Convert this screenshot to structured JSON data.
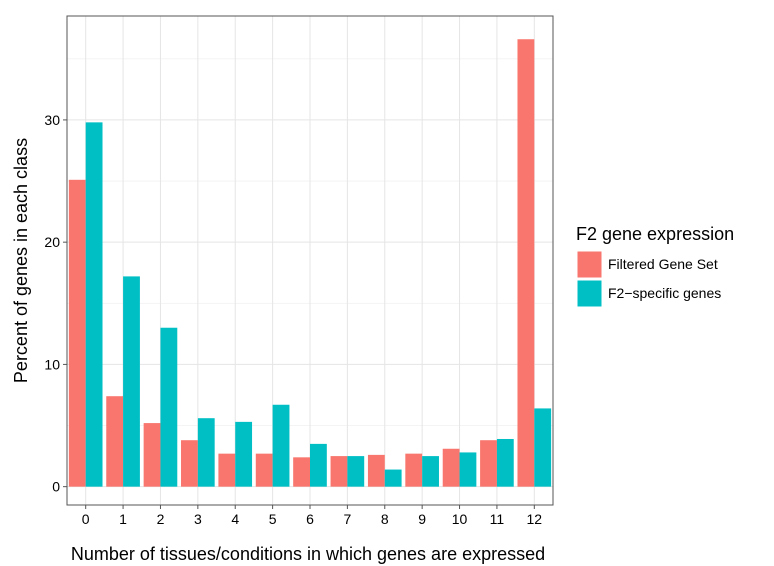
{
  "chart_data": {
    "type": "bar",
    "title": "",
    "xlabel": "Number of tissues/conditions in which genes are expressed",
    "ylabel": "Percent of genes in each class",
    "categories": [
      "0",
      "1",
      "2",
      "3",
      "4",
      "5",
      "6",
      "7",
      "8",
      "9",
      "10",
      "11",
      "12"
    ],
    "series": [
      {
        "name": "Filtered Gene Set",
        "color": "#F8766D",
        "values": [
          25.1,
          7.4,
          5.2,
          3.8,
          2.7,
          2.7,
          2.4,
          2.5,
          2.6,
          2.7,
          3.1,
          3.8,
          36.6
        ]
      },
      {
        "name": "F2−specific genes",
        "color": "#00BFC4",
        "values": [
          29.8,
          17.2,
          13.0,
          5.6,
          5.3,
          6.7,
          3.5,
          2.5,
          1.4,
          2.5,
          2.8,
          3.9,
          6.4
        ]
      }
    ],
    "ylim": [
      -1.5,
      38.5
    ],
    "yticks": [
      0,
      10,
      20,
      30
    ],
    "grid": true,
    "legend": {
      "title": "F2 gene expression",
      "position": "right"
    }
  }
}
